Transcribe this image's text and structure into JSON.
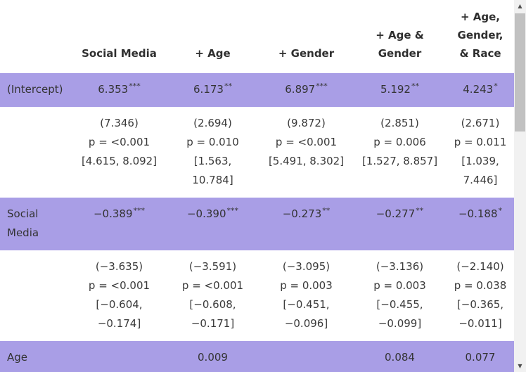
{
  "table": {
    "headers": [
      "",
      "Social Media",
      "+ Age",
      "+ Gender",
      "+ Age & Gender",
      "+ Age, Gender, & Race"
    ],
    "header_lines": {
      "c4": [
        "+ Age &",
        "Gender"
      ],
      "c5": [
        "+ Age,",
        "Gender,",
        "& Race"
      ]
    },
    "rows": {
      "intercept": {
        "label": "(Intercept)",
        "estimates": [
          "6.353",
          "6.173",
          "6.897",
          "5.192",
          "4.243"
        ],
        "stars": [
          "***",
          "**",
          "***",
          "**",
          "*"
        ],
        "stats": [
          [
            "(7.346)",
            "p = <0.001",
            "[4.615, 8.092]"
          ],
          [
            "(2.694)",
            "p = 0.010",
            "[1.563,",
            "10.784]"
          ],
          [
            "(9.872)",
            "p = <0.001",
            "[5.491, 8.302]"
          ],
          [
            "(2.851)",
            "p = 0.006",
            "[1.527, 8.857]"
          ],
          [
            "(2.671)",
            "p = 0.011",
            "[1.039,",
            "7.446]"
          ]
        ]
      },
      "social_media": {
        "label_lines": [
          "Social",
          "Media"
        ],
        "estimates": [
          "−0.389",
          "−0.390",
          "−0.273",
          "−0.277",
          "−0.188"
        ],
        "stars": [
          "***",
          "***",
          "**",
          "**",
          "*"
        ],
        "stats": [
          [
            "(−3.635)",
            "p = <0.001",
            "[−0.604,",
            "−0.174]"
          ],
          [
            "(−3.591)",
            "p = <0.001",
            "[−0.608,",
            "−0.171]"
          ],
          [
            "(−3.095)",
            "p = 0.003",
            "[−0.451,",
            "−0.096]"
          ],
          [
            "(−3.136)",
            "p = 0.003",
            "[−0.455,",
            "−0.099]"
          ],
          [
            "(−2.140)",
            "p = 0.038",
            "[−0.365,",
            "−0.011]"
          ]
        ]
      },
      "age": {
        "label": "Age",
        "estimates": [
          "",
          "0.009",
          "",
          "0.084",
          "0.077"
        ]
      }
    }
  },
  "colors": {
    "coef_row_bg": "#a99ee6",
    "scroll_track": "#f1f1f1",
    "scroll_thumb": "#c1c1c1"
  },
  "icons": {
    "scroll_up": "triangle-up",
    "scroll_down": "triangle-down"
  }
}
